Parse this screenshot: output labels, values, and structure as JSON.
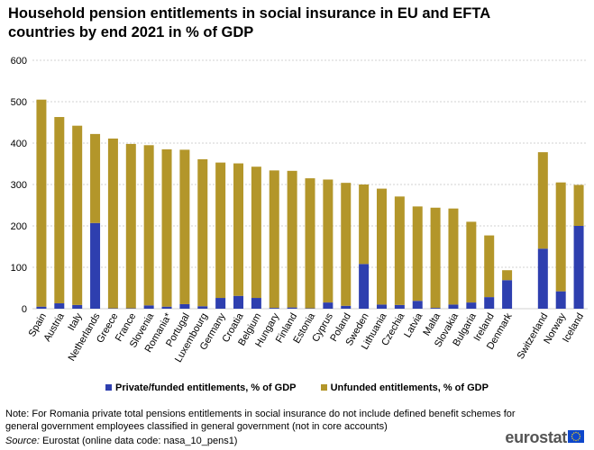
{
  "title": "Household pension entitlements in social insurance in EU and EFTA countries by end 2021 in % of GDP",
  "legend": {
    "private": "Private/funded entitlements, % of GDP",
    "unfunded": "Unfunded entitlements, % of GDP"
  },
  "note": "Note: For Romania private total pensions entitlements in social insurance do not include defined benefit schemes for general government employees classified in general government (not in core accounts)",
  "source_label": "Source:",
  "source_text": "Eurostat (online data code: nasa_10_pens1)",
  "brand": "eurostat",
  "colors": {
    "private": "#2E3FAF",
    "unfunded": "#B3962A",
    "grid": "#D0D0D0",
    "flag": "#0E47CB",
    "flag_stars": "#FFD617"
  },
  "icons": {
    "flag": "eu-flag-icon"
  },
  "chart_data": {
    "type": "bar",
    "stacked": true,
    "categories": [
      "Spain",
      "Austria",
      "Italy",
      "Netherlands",
      "Greece",
      "France",
      "Slovenia",
      "Romania*",
      "Portugal",
      "Luxembourg",
      "Germany",
      "Croatia",
      "Belgium",
      "Hungary",
      "Finland",
      "Estonia",
      "Cyprus",
      "Poland",
      "Sweden",
      "Lithuania",
      "Czechia",
      "Latvia",
      "Malta",
      "Slovakia",
      "Bulgaria",
      "Ireland",
      "Denmark",
      "",
      "Switzerland",
      "Norway",
      "Iceland"
    ],
    "series": [
      {
        "name": "Private/funded entitlements, % of GDP",
        "values": [
          5,
          13,
          9,
          207,
          1,
          1,
          8,
          5,
          11,
          6,
          26,
          31,
          26,
          2,
          3,
          1,
          15,
          7,
          108,
          10,
          9,
          19,
          2,
          10,
          15,
          28,
          69,
          null,
          145,
          42,
          200
        ]
      },
      {
        "name": "Unfunded entitlements, % of GDP",
        "values": [
          500,
          450,
          433,
          215,
          410,
          397,
          387,
          380,
          373,
          355,
          327,
          320,
          317,
          332,
          330,
          314,
          297,
          297,
          192,
          280,
          262,
          228,
          242,
          232,
          195,
          149,
          24,
          null,
          233,
          263,
          99
        ]
      }
    ],
    "ylim": [
      0,
      600
    ],
    "yticks": [
      0,
      100,
      200,
      300,
      400,
      500,
      600
    ],
    "xlabel": "",
    "ylabel": "",
    "grid": true,
    "legend_position": "bottom"
  }
}
